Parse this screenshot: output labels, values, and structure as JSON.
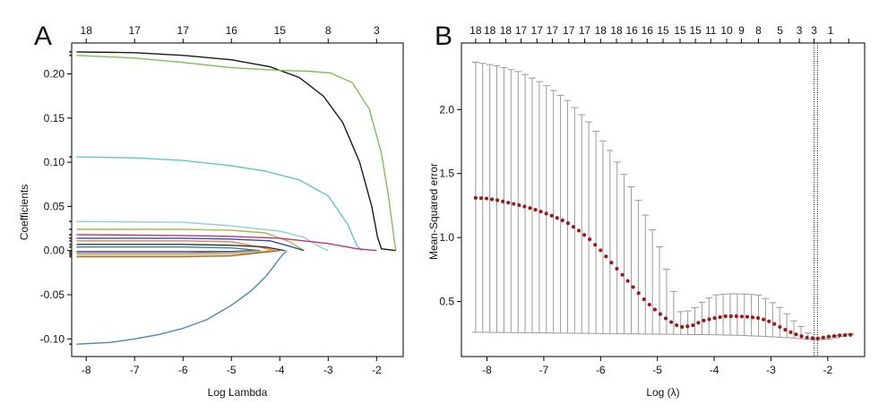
{
  "chart_data": [
    {
      "type": "line",
      "panel_label": "A",
      "xlabel": "Log Lambda",
      "ylabel": "Coefficients",
      "xlim": [
        -8.3,
        -1.45
      ],
      "ylim": [
        -0.12,
        0.235
      ],
      "xticks": [
        -8,
        -7,
        -6,
        -5,
        -4,
        -3,
        -2
      ],
      "xtick_labels": [
        "-8",
        "-7",
        "-6",
        "-5",
        "-4",
        "-3",
        "-2"
      ],
      "yticks": [
        0.2,
        0.15,
        0.1,
        0.05,
        0.0,
        -0.05,
        -0.1
      ],
      "ytick_labels": [
        "0.20",
        "0.15",
        "0.10",
        "0.05",
        "0.00",
        "-0.05",
        "-0.10"
      ],
      "top_axis": {
        "positions": [
          -8,
          -7,
          -6,
          -5,
          -4,
          -3,
          -2
        ],
        "labels": [
          "18",
          "17",
          "17",
          "16",
          "15",
          "8",
          "3"
        ]
      },
      "series": [
        {
          "name": "black-path",
          "color": "#1a1a1a",
          "x": [
            -8.2,
            -7,
            -6,
            -5,
            -4.2,
            -3.6,
            -3.1,
            -2.7,
            -2.35,
            -2.1,
            -1.98,
            -1.9,
            -1.6
          ],
          "y": [
            0.225,
            0.224,
            0.221,
            0.216,
            0.208,
            0.196,
            0.175,
            0.145,
            0.1,
            0.05,
            0.015,
            0.002,
            0.0
          ]
        },
        {
          "name": "green-path",
          "color": "#7fbf5a",
          "x": [
            -8.2,
            -7,
            -6,
            -5,
            -4,
            -3.4,
            -2.95,
            -2.5,
            -2.15,
            -1.9,
            -1.75,
            -1.63,
            -1.6
          ],
          "y": [
            0.221,
            0.218,
            0.213,
            0.207,
            0.204,
            0.203,
            0.201,
            0.19,
            0.16,
            0.11,
            0.06,
            0.01,
            0.0
          ]
        },
        {
          "name": "cyan-path",
          "color": "#62c4c4",
          "x": [
            -8.2,
            -7,
            -6,
            -5,
            -4.3,
            -3.6,
            -3,
            -2.6,
            -2.4,
            -2.3
          ],
          "y": [
            0.106,
            0.105,
            0.102,
            0.096,
            0.09,
            0.08,
            0.062,
            0.03,
            0.005,
            0.0
          ]
        },
        {
          "name": "light-cyan-path",
          "color": "#8ed0d6",
          "x": [
            -8.2,
            -6,
            -5,
            -4,
            -3.5,
            -3.2,
            -3.0
          ],
          "y": [
            0.033,
            0.032,
            0.028,
            0.022,
            0.015,
            0.005,
            0.0
          ]
        },
        {
          "name": "olive-path",
          "color": "#a8b84a",
          "x": [
            -8.2,
            -6,
            -5,
            -4.3,
            -3.8,
            -3.5
          ],
          "y": [
            0.024,
            0.024,
            0.023,
            0.02,
            0.01,
            0.0
          ]
        },
        {
          "name": "magenta-path",
          "color": "#c2307f",
          "x": [
            -8.2,
            -6,
            -5,
            -4,
            -3,
            -2.4,
            -2.0
          ],
          "y": [
            0.018,
            0.017,
            0.016,
            0.014,
            0.008,
            0.002,
            0.0
          ]
        },
        {
          "name": "blue-path",
          "color": "#2f4fa8",
          "x": [
            -8.2,
            -6,
            -5,
            -4.2,
            -3.8,
            -3.5
          ],
          "y": [
            0.014,
            0.014,
            0.013,
            0.011,
            0.005,
            0.0
          ]
        },
        {
          "name": "orange-path",
          "color": "#e0844a",
          "x": [
            -8.2,
            -6,
            -5,
            -4.5,
            -4.1
          ],
          "y": [
            0.011,
            0.011,
            0.01,
            0.005,
            0.0
          ]
        },
        {
          "name": "dark-path",
          "color": "#333333",
          "x": [
            -8.2,
            -6,
            -5,
            -4.3,
            -3.9
          ],
          "y": [
            0.007,
            0.007,
            0.006,
            0.004,
            0.0
          ]
        },
        {
          "name": "teal-path",
          "color": "#2a8a8a",
          "x": [
            -8.2,
            -6,
            -5,
            -4.4
          ],
          "y": [
            0.004,
            0.004,
            0.003,
            0.0
          ]
        },
        {
          "name": "purple-path",
          "color": "#7a3c9a",
          "x": [
            -8.2,
            -6,
            -5,
            -4.6
          ],
          "y": [
            -0.001,
            -0.001,
            -0.001,
            0.0
          ]
        },
        {
          "name": "grey-path",
          "color": "#888888",
          "x": [
            -8.2,
            -6,
            -5,
            -4.4
          ],
          "y": [
            -0.003,
            -0.003,
            -0.002,
            0.0
          ]
        },
        {
          "name": "yellow-green-path",
          "color": "#b5c83a",
          "x": [
            -8.2,
            -6,
            -5,
            -4.5,
            -4.2
          ],
          "y": [
            -0.005,
            -0.005,
            -0.004,
            -0.002,
            0.0
          ]
        },
        {
          "name": "brown-path",
          "color": "#b05a3a",
          "x": [
            -8.2,
            -6,
            -5,
            -4.5,
            -4.0
          ],
          "y": [
            -0.007,
            -0.007,
            -0.006,
            -0.003,
            0.0
          ]
        },
        {
          "name": "steel-blue-path",
          "color": "#4a86b8",
          "x": [
            -8.2,
            -7.5,
            -7,
            -6.5,
            -6,
            -5.5,
            -5,
            -4.6,
            -4.3,
            -4.1,
            -3.95,
            -3.85
          ],
          "y": [
            -0.106,
            -0.104,
            -0.1,
            -0.095,
            -0.088,
            -0.078,
            -0.062,
            -0.046,
            -0.03,
            -0.016,
            -0.005,
            0.0
          ]
        }
      ]
    },
    {
      "type": "scatter",
      "panel_label": "B",
      "xlabel": "Log (λ)",
      "ylabel": "Mean-Squared error",
      "xlim": [
        -8.45,
        -1.35
      ],
      "ylim": [
        0.07,
        2.52
      ],
      "xticks": [
        -8,
        -7,
        -6,
        -5,
        -4,
        -3,
        -2
      ],
      "xtick_labels": [
        "-8",
        "-7",
        "-6",
        "-5",
        "-4",
        "-3",
        "-2"
      ],
      "yticks": [
        0.5,
        1.0,
        1.5,
        2.0
      ],
      "ytick_labels": [
        "0.5",
        "1.0",
        "1.5",
        "2.0"
      ],
      "top_axis": {
        "positions": [
          -8.2,
          -7.95,
          -7.67,
          -7.4,
          -7.12,
          -6.85,
          -6.56,
          -6.28,
          -6.0,
          -5.72,
          -5.45,
          -5.18,
          -4.9,
          -4.6,
          -4.33,
          -4.06,
          -3.78,
          -3.52,
          -3.22,
          -2.84,
          -2.5,
          -2.24,
          -1.95,
          -1.63
        ],
        "labels": [
          "18",
          "18",
          "18",
          "17",
          "17",
          "17",
          "17",
          "17",
          "18",
          "18",
          "16",
          "16",
          "15",
          "15",
          "15",
          "11",
          "10",
          "9",
          "8",
          "5",
          "3",
          "3",
          "1",
          ""
        ]
      },
      "vlines": [
        -2.24,
        -2.18
      ],
      "lower_band_x": [
        -8.2,
        -7,
        -6,
        -5,
        -4.3,
        -4,
        -3.5,
        -3,
        -2.6,
        -2.35,
        -2.2,
        -2,
        -1.8,
        -1.6
      ],
      "lower_band_y": [
        0.26,
        0.255,
        0.25,
        0.245,
        0.242,
        0.24,
        0.235,
        0.225,
        0.215,
        0.205,
        0.2,
        0.205,
        0.22,
        0.24
      ],
      "upper_band_x": [
        -8.2,
        -7.8,
        -7.4,
        -7,
        -6.6,
        -6.2,
        -5.8,
        -5.4,
        -5,
        -4.8,
        -4.6,
        -4.4,
        -4.2,
        -4.0,
        -3.8,
        -3.5,
        -3.2,
        -3,
        -2.8,
        -2.6,
        -2.4,
        -2.3,
        -2.2,
        -2,
        -1.8,
        -1.6
      ],
      "upper_band_y": [
        2.37,
        2.34,
        2.29,
        2.2,
        2.08,
        1.9,
        1.66,
        1.35,
        0.98,
        0.7,
        0.42,
        0.43,
        0.5,
        0.55,
        0.56,
        0.56,
        0.55,
        0.5,
        0.44,
        0.35,
        0.28,
        0.23,
        0.21,
        0.22,
        0.24,
        0.25
      ],
      "mean_x": [
        -8.2,
        -8.0,
        -7.8,
        -7.6,
        -7.4,
        -7.2,
        -7.0,
        -6.8,
        -6.6,
        -6.4,
        -6.2,
        -6.0,
        -5.8,
        -5.6,
        -5.4,
        -5.2,
        -5.0,
        -4.8,
        -4.6,
        -4.4,
        -4.2,
        -4.0,
        -3.8,
        -3.6,
        -3.4,
        -3.2,
        -3.0,
        -2.8,
        -2.6,
        -2.4,
        -2.2,
        -2.0,
        -1.8,
        -1.6
      ],
      "mean_y": [
        1.31,
        1.305,
        1.29,
        1.27,
        1.25,
        1.225,
        1.195,
        1.16,
        1.12,
        1.06,
        0.99,
        0.9,
        0.8,
        0.7,
        0.6,
        0.5,
        0.42,
        0.35,
        0.3,
        0.31,
        0.35,
        0.37,
        0.385,
        0.385,
        0.38,
        0.37,
        0.34,
        0.29,
        0.25,
        0.22,
        0.21,
        0.225,
        0.235,
        0.24
      ],
      "mean_color": "#9a1a1a",
      "errorbar_color": "#9a9a9a"
    }
  ]
}
